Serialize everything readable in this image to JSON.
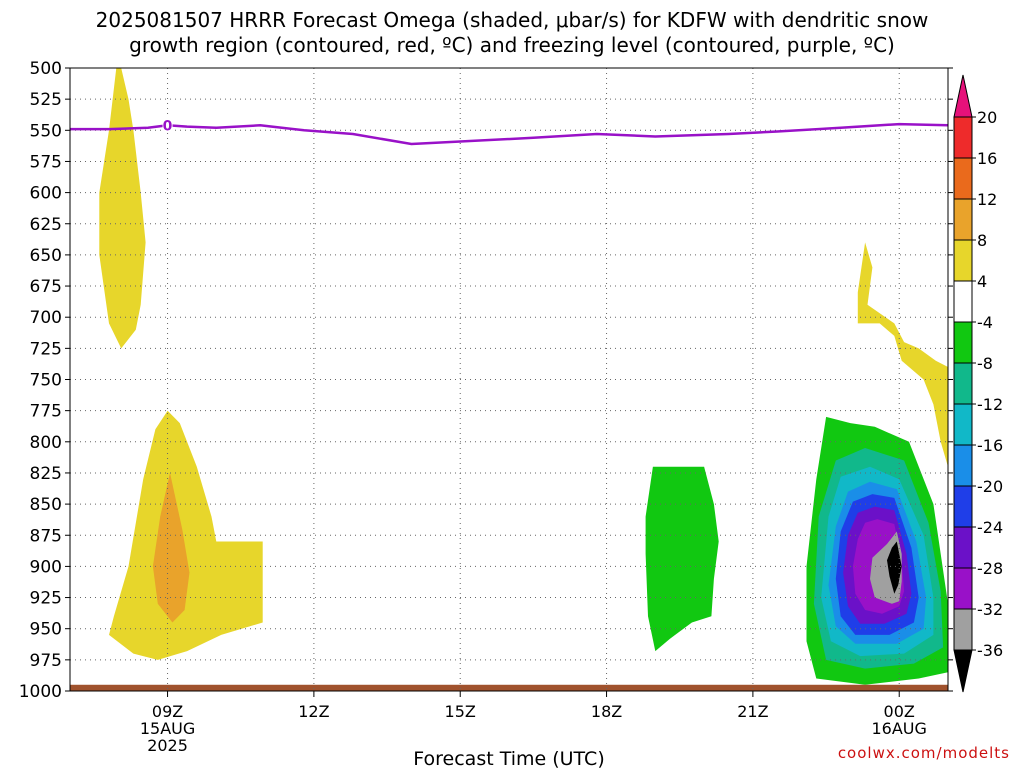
{
  "title_line1": "2025081507 HRRR Forecast Omega (shaded, μbar/s) for KDFW with dendritic snow",
  "title_line2": "growth region (contoured, red, ºC) and freezing level (contoured, purple, ºC)",
  "credit": "coolwx.com/modelts",
  "chart_data": {
    "type": "contour",
    "title": "2025081507 HRRR Forecast Omega (shaded, μbar/s) for KDFW with dendritic snow growth region (contoured, red, ºC) and freezing level (contoured, purple, ºC)",
    "xlabel": "Forecast Time (UTC)",
    "ylabel": "",
    "x_range_hours": [
      7,
      25
    ],
    "xticks": [
      {
        "hour": 9,
        "lines": [
          "09Z",
          "15AUG",
          "2025"
        ]
      },
      {
        "hour": 12,
        "lines": [
          "12Z"
        ]
      },
      {
        "hour": 15,
        "lines": [
          "15Z"
        ]
      },
      {
        "hour": 18,
        "lines": [
          "18Z"
        ]
      },
      {
        "hour": 21,
        "lines": [
          "21Z"
        ]
      },
      {
        "hour": 24,
        "lines": [
          "00Z",
          "16AUG"
        ]
      }
    ],
    "y_range_hPa": [
      1000,
      500
    ],
    "yticks": [
      500,
      525,
      550,
      575,
      600,
      625,
      650,
      675,
      700,
      725,
      750,
      775,
      800,
      825,
      850,
      875,
      900,
      925,
      950,
      975,
      1000
    ],
    "grid": true,
    "colorbar": {
      "position": "right",
      "labels": [
        "20",
        "16",
        "12",
        "8",
        "4",
        "-4",
        "-8",
        "-12",
        "-16",
        "-20",
        "-24",
        "-28",
        "-32",
        "-36"
      ],
      "colors": [
        "#ee2b2b",
        "#ea6a1c",
        "#e9a32b",
        "#e7d62b",
        "#ffffff",
        "#11c811",
        "#11b88b",
        "#11b8c8",
        "#1a8ee8",
        "#1f3ee8",
        "#6b11c8",
        "#9911c8",
        "#a0a0a0"
      ],
      "top_arrow_color": "#e6117a",
      "bottom_arrow_color": "#000000"
    },
    "freezing_level": {
      "color": "#9911c8",
      "label": "0",
      "points": [
        [
          7.0,
          549
        ],
        [
          7.8,
          549
        ],
        [
          8.6,
          548
        ],
        [
          9.0,
          546
        ],
        [
          9.4,
          547
        ],
        [
          10.0,
          548
        ],
        [
          10.9,
          546
        ],
        [
          11.8,
          550
        ],
        [
          12.8,
          553
        ],
        [
          14.0,
          561
        ],
        [
          15.0,
          559
        ],
        [
          16.5,
          556
        ],
        [
          17.8,
          553
        ],
        [
          19.0,
          555
        ],
        [
          20.5,
          553
        ],
        [
          21.5,
          551
        ],
        [
          22.8,
          548
        ],
        [
          24.0,
          545
        ],
        [
          25.0,
          546
        ]
      ]
    },
    "omega_regions": [
      {
        "value": "4 to 8",
        "color": "#e7d62b",
        "points": [
          [
            8.05,
            500
          ],
          [
            8.2,
            525
          ],
          [
            8.3,
            550
          ],
          [
            8.45,
            600
          ],
          [
            8.55,
            640
          ],
          [
            8.45,
            690
          ],
          [
            8.35,
            710
          ],
          [
            8.05,
            725
          ],
          [
            7.8,
            705
          ],
          [
            7.6,
            650
          ],
          [
            7.6,
            600
          ],
          [
            7.8,
            550
          ],
          [
            7.95,
            500
          ]
        ]
      },
      {
        "value": "4 to 8",
        "color": "#e7d62b",
        "points": [
          [
            9.0,
            775
          ],
          [
            9.25,
            785
          ],
          [
            9.6,
            820
          ],
          [
            9.9,
            860
          ],
          [
            10.0,
            880
          ],
          [
            10.95,
            880
          ],
          [
            10.95,
            945
          ],
          [
            10.1,
            955
          ],
          [
            9.4,
            968
          ],
          [
            8.8,
            975
          ],
          [
            8.3,
            970
          ],
          [
            7.8,
            955
          ],
          [
            7.9,
            940
          ],
          [
            8.2,
            900
          ],
          [
            8.5,
            830
          ],
          [
            8.75,
            790
          ]
        ]
      },
      {
        "value": "8 to 12",
        "color": "#e9a32b",
        "points": [
          [
            9.05,
            825
          ],
          [
            9.3,
            870
          ],
          [
            9.45,
            905
          ],
          [
            9.35,
            935
          ],
          [
            9.1,
            945
          ],
          [
            8.8,
            930
          ],
          [
            8.7,
            900
          ],
          [
            8.85,
            860
          ]
        ]
      },
      {
        "value": "4 to 8",
        "color": "#e7d62b",
        "points": [
          [
            23.3,
            640
          ],
          [
            23.45,
            660
          ],
          [
            23.35,
            690
          ],
          [
            23.9,
            705
          ],
          [
            24.1,
            720
          ],
          [
            24.4,
            725
          ],
          [
            24.75,
            735
          ],
          [
            25.0,
            740
          ],
          [
            25.0,
            820
          ],
          [
            24.85,
            800
          ],
          [
            24.7,
            770
          ],
          [
            24.5,
            750
          ],
          [
            24.05,
            735
          ],
          [
            23.9,
            715
          ],
          [
            23.6,
            705
          ],
          [
            23.15,
            705
          ],
          [
            23.15,
            680
          ]
        ]
      },
      {
        "value": "-4 to -8",
        "color": "#11c811",
        "points": [
          [
            19.8,
            820
          ],
          [
            20.0,
            820
          ],
          [
            20.2,
            850
          ],
          [
            20.3,
            880
          ],
          [
            20.2,
            910
          ],
          [
            20.15,
            940
          ],
          [
            19.75,
            945
          ],
          [
            19.3,
            958
          ],
          [
            19.0,
            968
          ],
          [
            18.85,
            940
          ],
          [
            18.8,
            890
          ],
          [
            18.8,
            860
          ],
          [
            18.95,
            820
          ]
        ]
      },
      {
        "value": "-4 to -8",
        "color": "#11c811",
        "points": [
          [
            22.5,
            780
          ],
          [
            23.0,
            785
          ],
          [
            23.5,
            788
          ],
          [
            24.2,
            800
          ],
          [
            24.7,
            850
          ],
          [
            25.0,
            930
          ],
          [
            25.0,
            985
          ],
          [
            24.4,
            990
          ],
          [
            23.3,
            995
          ],
          [
            22.3,
            990
          ],
          [
            22.1,
            960
          ],
          [
            22.1,
            900
          ],
          [
            22.3,
            830
          ]
        ]
      },
      {
        "value": "-8 to -12",
        "color": "#11b88b",
        "points": [
          [
            23.3,
            805
          ],
          [
            24.1,
            815
          ],
          [
            24.6,
            865
          ],
          [
            24.85,
            920
          ],
          [
            24.9,
            965
          ],
          [
            24.3,
            978
          ],
          [
            23.3,
            982
          ],
          [
            22.5,
            975
          ],
          [
            22.25,
            930
          ],
          [
            22.35,
            860
          ],
          [
            22.7,
            815
          ]
        ]
      },
      {
        "value": "-12 to -16",
        "color": "#11b8c8",
        "points": [
          [
            23.4,
            820
          ],
          [
            24.0,
            830
          ],
          [
            24.5,
            875
          ],
          [
            24.7,
            925
          ],
          [
            24.7,
            955
          ],
          [
            24.1,
            970
          ],
          [
            23.2,
            972
          ],
          [
            22.6,
            960
          ],
          [
            22.4,
            925
          ],
          [
            22.55,
            860
          ],
          [
            22.8,
            828
          ]
        ]
      },
      {
        "value": "-16 to -20",
        "color": "#1a8ee8",
        "points": [
          [
            23.4,
            832
          ],
          [
            23.95,
            838
          ],
          [
            24.35,
            880
          ],
          [
            24.55,
            925
          ],
          [
            24.5,
            950
          ],
          [
            23.95,
            962
          ],
          [
            23.1,
            962
          ],
          [
            22.7,
            948
          ],
          [
            22.55,
            915
          ],
          [
            22.7,
            868
          ],
          [
            22.95,
            840
          ]
        ]
      },
      {
        "value": "-20 to -24",
        "color": "#1f3ee8",
        "points": [
          [
            23.45,
            842
          ],
          [
            23.9,
            845
          ],
          [
            24.25,
            885
          ],
          [
            24.4,
            925
          ],
          [
            24.3,
            945
          ],
          [
            23.8,
            955
          ],
          [
            23.1,
            955
          ],
          [
            22.8,
            940
          ],
          [
            22.7,
            910
          ],
          [
            22.8,
            872
          ],
          [
            23.05,
            848
          ]
        ]
      },
      {
        "value": "-24 to -28",
        "color": "#6b11c8",
        "points": [
          [
            23.5,
            852
          ],
          [
            23.9,
            855
          ],
          [
            24.15,
            890
          ],
          [
            24.25,
            922
          ],
          [
            24.15,
            938
          ],
          [
            23.7,
            946
          ],
          [
            23.2,
            946
          ],
          [
            22.95,
            932
          ],
          [
            22.85,
            905
          ],
          [
            22.95,
            875
          ],
          [
            23.15,
            857
          ]
        ]
      },
      {
        "value": "-28 to -32",
        "color": "#9911c8",
        "points": [
          [
            23.55,
            862
          ],
          [
            23.9,
            866
          ],
          [
            24.05,
            895
          ],
          [
            24.1,
            920
          ],
          [
            24.0,
            932
          ],
          [
            23.65,
            938
          ],
          [
            23.3,
            935
          ],
          [
            23.1,
            922
          ],
          [
            23.05,
            900
          ],
          [
            23.15,
            878
          ],
          [
            23.3,
            865
          ]
        ]
      },
      {
        "value": "-32 to -36",
        "color": "#a0a0a0",
        "points": [
          [
            23.95,
            872
          ],
          [
            24.05,
            890
          ],
          [
            24.05,
            912
          ],
          [
            24.0,
            928
          ],
          [
            23.85,
            930
          ],
          [
            23.5,
            925
          ],
          [
            23.4,
            910
          ],
          [
            23.45,
            893
          ],
          [
            23.75,
            882
          ]
        ]
      },
      {
        "value": "below -36",
        "color": "#000000",
        "points": [
          [
            23.95,
            880
          ],
          [
            24.05,
            900
          ],
          [
            23.98,
            915
          ],
          [
            23.9,
            922
          ],
          [
            23.8,
            908
          ],
          [
            23.75,
            895
          ],
          [
            23.85,
            885
          ]
        ]
      }
    ],
    "surface": {
      "color": "#a0522d",
      "pressure": [
        995,
        1000
      ]
    }
  }
}
